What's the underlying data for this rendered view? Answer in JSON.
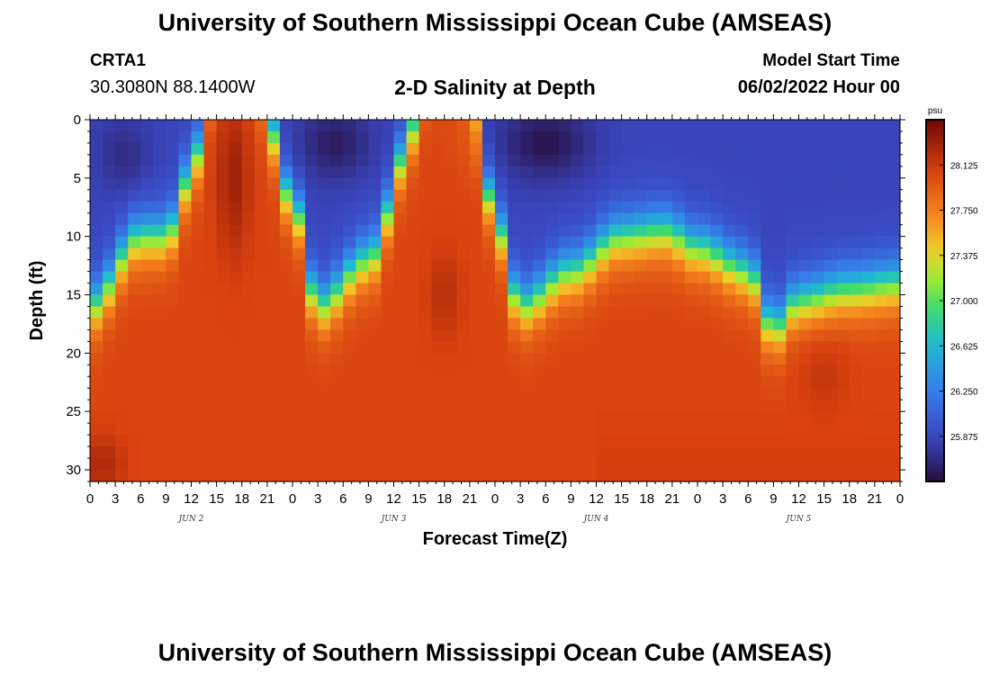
{
  "page": {
    "title": "University of Southern Mississippi Ocean Cube (AMSEAS)",
    "footer_title": "University of Southern Mississippi Ocean Cube (AMSEAS)",
    "station_id": "CRTA1",
    "coordinates": "30.3080N  88.1400W",
    "plot_title": "2-D Salinity at Depth",
    "model_start_label": "Model Start Time",
    "model_start_value": "06/02/2022 Hour 00"
  },
  "chart_data": {
    "type": "heatmap",
    "title": "2-D Salinity at Depth",
    "xlabel": "Forecast Time(Z)",
    "ylabel": "Depth (ft)",
    "x_range_hours": [
      0,
      96
    ],
    "y_range_ft": [
      0,
      31
    ],
    "x_tick_labels": [
      "0",
      "3",
      "6",
      "9",
      "12",
      "15",
      "18",
      "21",
      "0",
      "3",
      "6",
      "9",
      "12",
      "15",
      "18",
      "21",
      "0",
      "3",
      "6",
      "9",
      "12",
      "15",
      "18",
      "21",
      "0",
      "3",
      "6",
      "9",
      "12",
      "15",
      "18",
      "21",
      "0"
    ],
    "x_tick_step_hours": 3,
    "day_labels": [
      {
        "label": "JUN 2",
        "hour": 12
      },
      {
        "label": "JUN 3",
        "hour": 36
      },
      {
        "label": "JUN 4",
        "hour": 60
      },
      {
        "label": "JUN 5",
        "hour": 84
      }
    ],
    "y_ticks": [
      0,
      5,
      10,
      15,
      20,
      25,
      30
    ],
    "colorbar": {
      "unit": "psu",
      "range": [
        25.5,
        28.5
      ],
      "tick_labels": [
        "28.125",
        "27.750",
        "27.375",
        "27.000",
        "26.625",
        "26.250",
        "25.875"
      ],
      "tick_values": [
        28.125,
        27.75,
        27.375,
        27.0,
        26.625,
        26.25,
        25.875
      ]
    },
    "field": {
      "grid_step_hours": 1.5,
      "grid_step_ft": 1,
      "deep_value": 28.05,
      "shallow_value": 25.85,
      "deep_columns": [
        {
          "hour": 17,
          "width_hours": 2.8,
          "depth_ft": -6
        },
        {
          "hour": 42,
          "width_hours": 3.2,
          "depth_ft": -6
        }
      ],
      "halocline_profile": [
        {
          "hour": 0,
          "depth_ft": 16
        },
        {
          "hour": 6,
          "depth_ft": 10
        },
        {
          "hour": 9,
          "depth_ft": 10
        },
        {
          "hour": 12,
          "depth_ft": 5
        },
        {
          "hour": 15,
          "depth_ft": -2
        },
        {
          "hour": 20,
          "depth_ft": -2
        },
        {
          "hour": 24,
          "depth_ft": 7
        },
        {
          "hour": 27,
          "depth_ft": 16
        },
        {
          "hour": 33,
          "depth_ft": 12
        },
        {
          "hour": 38,
          "depth_ft": 3
        },
        {
          "hour": 41,
          "depth_ft": -2
        },
        {
          "hour": 45,
          "depth_ft": -2
        },
        {
          "hour": 48,
          "depth_ft": 9
        },
        {
          "hour": 51,
          "depth_ft": 16
        },
        {
          "hour": 57,
          "depth_ft": 13
        },
        {
          "hour": 63,
          "depth_ft": 10
        },
        {
          "hour": 68,
          "depth_ft": 9.5
        },
        {
          "hour": 72,
          "depth_ft": 11
        },
        {
          "hour": 78,
          "depth_ft": 13
        },
        {
          "hour": 81,
          "depth_ft": 18
        },
        {
          "hour": 84,
          "depth_ft": 15.5
        },
        {
          "hour": 90,
          "depth_ft": 14.5
        },
        {
          "hour": 96,
          "depth_ft": 14
        }
      ],
      "fresh_pockets": [
        {
          "hour": 4,
          "depth_ft": 3,
          "radius_hours": 3,
          "radius_ft": 3,
          "value": 25.7
        },
        {
          "hour": 29,
          "depth_ft": 2,
          "radius_hours": 4,
          "radius_ft": 3,
          "value": 25.6
        },
        {
          "hour": 54,
          "depth_ft": 2,
          "radius_hours": 5,
          "radius_ft": 3,
          "value": 25.55
        }
      ],
      "salty_pockets": [
        {
          "hour": 1.5,
          "depth_ft": 29.5,
          "radius_hours": 2.5,
          "radius_ft": 2.5,
          "value": 28.25
        },
        {
          "hour": 17,
          "depth_ft": 5,
          "radius_hours": 2,
          "radius_ft": 7,
          "value": 28.3
        },
        {
          "hour": 42,
          "depth_ft": 15,
          "radius_hours": 2,
          "radius_ft": 4,
          "value": 28.2
        },
        {
          "hour": 87,
          "depth_ft": 22,
          "radius_hours": 3,
          "radius_ft": 3,
          "value": 28.15
        }
      ]
    }
  }
}
